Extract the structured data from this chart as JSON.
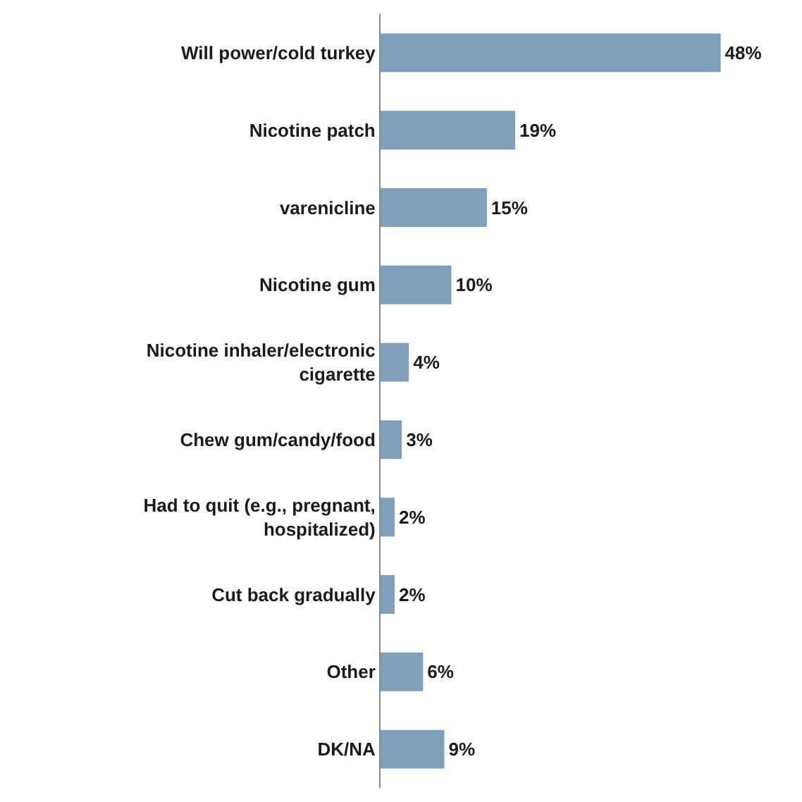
{
  "chart_data": {
    "type": "bar",
    "orientation": "horizontal",
    "categories": [
      "Will power/cold turkey",
      "Nicotine patch",
      "varenicline",
      "Nicotine gum",
      "Nicotine inhaler/electronic\ncigarette",
      "Chew gum/candy/food",
      "Had to quit (e.g., pregnant,\nhospitalized)",
      "Cut back gradually",
      "Other",
      "DK/NA"
    ],
    "values": [
      48,
      19,
      15,
      10,
      4,
      3,
      2,
      2,
      6,
      9
    ],
    "value_labels": [
      "48%",
      "19%",
      "15%",
      "10%",
      "4%",
      "3%",
      "2%",
      "2%",
      "6%",
      "9%"
    ],
    "color": "#7f9fba",
    "legend": false
  }
}
